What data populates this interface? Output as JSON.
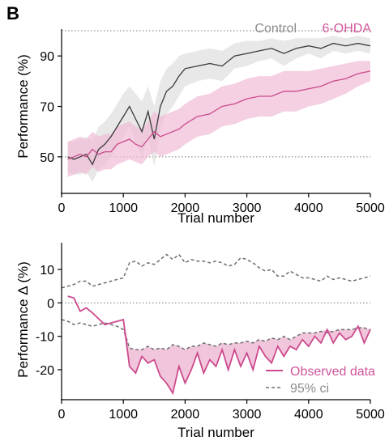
{
  "panel_letter": "B",
  "colors": {
    "control": "#3a3a3a",
    "control_band": "#d9d9d9",
    "control_legend": "#8c8c8c",
    "ohda": "#cc4a8c",
    "ohda_band": "#efbcd6",
    "ohda_legend": "#d0559a",
    "ci": "#6e6e6e"
  },
  "chart_data": [
    {
      "type": "line",
      "xlabel": "Trial number",
      "ylabel": "Performance (%)",
      "xlim": [
        0,
        5000
      ],
      "ylim": [
        40,
        100
      ],
      "xticks": [
        0,
        1000,
        2000,
        3000,
        4000,
        5000
      ],
      "yticks": [
        50,
        70,
        90
      ],
      "reference_lines": [
        50,
        100
      ],
      "legend": "top-right",
      "series": [
        {
          "name": "Control",
          "x": [
            100,
            200,
            300,
            400,
            500,
            600,
            700,
            800,
            900,
            1000,
            1100,
            1200,
            1300,
            1400,
            1500,
            1600,
            1700,
            1800,
            1900,
            2000,
            2200,
            2400,
            2600,
            2800,
            3000,
            3200,
            3400,
            3600,
            3800,
            4000,
            4200,
            4400,
            4600,
            4800,
            5000
          ],
          "y": [
            50,
            49,
            50,
            51,
            47,
            53,
            55,
            58,
            62,
            66,
            70,
            65,
            60,
            68,
            57,
            70,
            76,
            78,
            82,
            85,
            86,
            87,
            86,
            90,
            91,
            92,
            93,
            91,
            93,
            94,
            93,
            95,
            94,
            95,
            94
          ],
          "ci_upper": [
            56,
            56,
            57,
            58,
            56,
            62,
            64,
            67,
            71,
            75,
            78,
            75,
            72,
            78,
            70,
            80,
            85,
            87,
            90,
            91,
            92,
            93,
            92,
            95,
            96,
            96,
            97,
            96,
            97,
            97,
            97,
            98,
            97,
            98,
            97
          ],
          "ci_lower": [
            44,
            43,
            43,
            44,
            40,
            45,
            47,
            50,
            54,
            58,
            62,
            56,
            50,
            58,
            46,
            61,
            67,
            70,
            74,
            78,
            80,
            81,
            80,
            85,
            86,
            88,
            89,
            86,
            89,
            91,
            89,
            92,
            91,
            92,
            91
          ]
        },
        {
          "name": "6-OHDA",
          "x": [
            100,
            200,
            300,
            400,
            500,
            600,
            700,
            800,
            900,
            1000,
            1100,
            1200,
            1300,
            1400,
            1500,
            1600,
            1700,
            1800,
            1900,
            2000,
            2200,
            2400,
            2600,
            2800,
            3000,
            3200,
            3400,
            3600,
            3800,
            4000,
            4200,
            4400,
            4600,
            4800,
            5000
          ],
          "y": [
            49,
            50,
            51,
            50,
            53,
            51,
            52,
            52,
            55,
            56,
            57,
            55,
            54,
            57,
            60,
            58,
            59,
            60,
            61,
            63,
            66,
            67,
            70,
            71,
            73,
            74,
            74,
            76,
            76,
            77,
            78,
            80,
            81,
            83,
            84
          ],
          "ci_upper": [
            56,
            57,
            58,
            57,
            60,
            58,
            59,
            59,
            62,
            63,
            64,
            62,
            61,
            64,
            68,
            66,
            67,
            68,
            69,
            71,
            74,
            75,
            78,
            79,
            81,
            82,
            82,
            84,
            84,
            84,
            85,
            86,
            87,
            88,
            88
          ],
          "ci_lower": [
            42,
            43,
            44,
            43,
            46,
            44,
            45,
            45,
            47,
            48,
            49,
            48,
            47,
            50,
            52,
            50,
            51,
            52,
            53,
            55,
            58,
            59,
            62,
            63,
            65,
            66,
            66,
            68,
            68,
            70,
            71,
            73,
            75,
            78,
            80
          ]
        }
      ]
    },
    {
      "type": "line",
      "xlabel": "Trial number",
      "ylabel": "Performance Δ (%)",
      "xlim": [
        0,
        5000
      ],
      "ylim": [
        -28,
        18
      ],
      "xticks": [
        0,
        1000,
        2000,
        3000,
        4000,
        5000
      ],
      "yticks": [
        10,
        0,
        -10,
        -20
      ],
      "reference_lines": [
        0
      ],
      "legend": "bottom-right",
      "series": [
        {
          "name": "Observed data",
          "x": [
            100,
            200,
            300,
            400,
            500,
            700,
            900,
            1000,
            1100,
            1200,
            1300,
            1400,
            1500,
            1600,
            1700,
            1800,
            1900,
            2000,
            2100,
            2200,
            2300,
            2400,
            2500,
            2600,
            2700,
            2800,
            2900,
            3000,
            3100,
            3200,
            3300,
            3400,
            3500,
            3600,
            3700,
            3800,
            3900,
            4000,
            4100,
            4200,
            4300,
            4400,
            4500,
            4600,
            4700,
            4800,
            4900,
            5000
          ],
          "y": [
            2,
            1.5,
            -2.5,
            -1.5,
            -3,
            -6.5,
            -5.5,
            -5,
            -19,
            -21,
            -16,
            -18,
            -17,
            -22,
            -24,
            -27,
            -19,
            -24,
            -20,
            -15,
            -21,
            -17,
            -19,
            -14,
            -20,
            -14,
            -19,
            -15,
            -20,
            -13,
            -16,
            -18,
            -13,
            -16,
            -13,
            -14,
            -11,
            -13,
            -10,
            -12,
            -8,
            -12,
            -9,
            -11,
            -10,
            -7,
            -12,
            -8
          ]
        },
        {
          "name": "95% ci",
          "x": [
            0,
            100,
            200,
            300,
            400,
            500,
            600,
            700,
            800,
            900,
            1000,
            1100,
            1200,
            1300,
            1400,
            1500,
            1600,
            1700,
            1800,
            1900,
            2000,
            2100,
            2200,
            2300,
            2400,
            2500,
            2600,
            2700,
            2800,
            2900,
            3000,
            3100,
            3200,
            3300,
            3400,
            3500,
            3600,
            3700,
            3800,
            3900,
            4000,
            4100,
            4200,
            4300,
            4400,
            4500,
            4600,
            4700,
            4800,
            4900,
            5000
          ],
          "ci_upper": [
            4.5,
            5,
            5.5,
            6.5,
            6.5,
            5,
            5.5,
            6,
            6.5,
            7,
            7.5,
            12,
            12.5,
            11,
            12,
            11.5,
            13,
            14.5,
            13,
            14.5,
            12,
            13,
            12.5,
            12.5,
            12,
            12.5,
            12,
            11,
            11.5,
            13.5,
            13,
            12,
            10.5,
            9.5,
            10,
            8,
            8,
            9.5,
            8.5,
            7.5,
            7.5,
            7,
            6.5,
            8,
            7,
            7.5,
            7,
            6.5,
            7,
            7.5,
            8
          ],
          "ci_lower": [
            -5,
            -5.5,
            -6.5,
            -6,
            -6.5,
            -7,
            -6.5,
            -6,
            -6.5,
            -7,
            -8,
            -13.5,
            -14,
            -14,
            -13,
            -14,
            -13.5,
            -14,
            -12.5,
            -13,
            -14,
            -13,
            -13,
            -12,
            -12.5,
            -13,
            -12,
            -12.5,
            -12,
            -12,
            -11.5,
            -12,
            -11,
            -11.5,
            -10.5,
            -11,
            -10,
            -11,
            -10,
            -9,
            -9,
            -9,
            -8.5,
            -9,
            -8.5,
            -8,
            -8,
            -8,
            -7.5,
            -7.5,
            -8
          ]
        }
      ]
    }
  ]
}
